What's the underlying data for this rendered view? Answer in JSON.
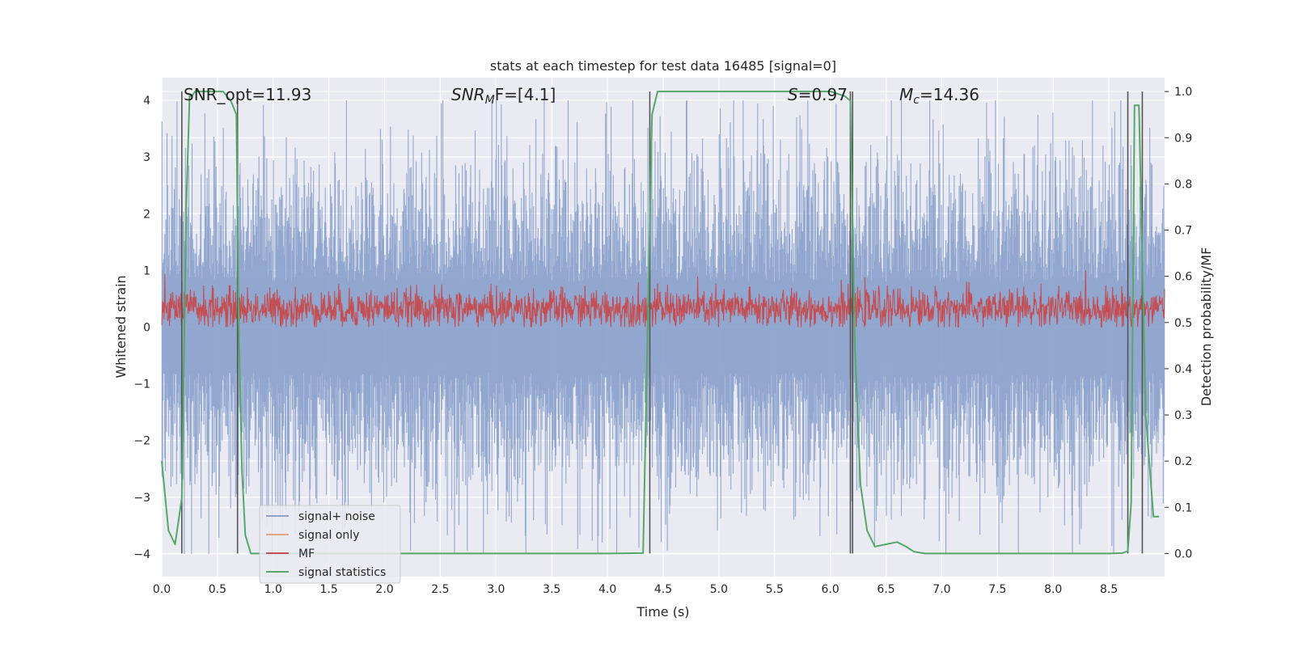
{
  "chart_data": {
    "type": "line",
    "title": "stats at each timestep for test data 16485 [signal=0]",
    "xlabel": "Time (s)",
    "ylabel_left": "Whitened strain",
    "ylabel_right": "Detection probability/MF",
    "xlim": [
      0.0,
      9.0
    ],
    "ylim_left": [
      -4.4,
      4.4
    ],
    "ylim_right": [
      -0.05,
      1.03
    ],
    "x_ticks": [
      "0.0",
      "0.5",
      "1.0",
      "1.5",
      "2.0",
      "2.5",
      "3.0",
      "3.5",
      "4.0",
      "4.5",
      "5.0",
      "5.5",
      "6.0",
      "6.5",
      "7.0",
      "7.5",
      "8.0",
      "8.5"
    ],
    "y_ticks_left": [
      "4",
      "3",
      "2",
      "1",
      "0",
      "−1",
      "−2",
      "−3",
      "−4"
    ],
    "y_ticks_right": [
      "1.0",
      "0.9",
      "0.8",
      "0.7",
      "0.6",
      "0.5",
      "0.4",
      "0.3",
      "0.2",
      "0.1",
      "0.0"
    ],
    "grid": true,
    "legend_position": "lower-left",
    "annotations": [
      {
        "text": "SNR_opt=11.93"
      },
      {
        "text": "SNR",
        "sub": "M",
        "rest": "F=[4.1]"
      },
      {
        "text": "S",
        "rest": "=0.97"
      },
      {
        "text": "M",
        "sub": "c",
        "rest": "=14.36"
      }
    ],
    "series": [
      {
        "name": "signal+ noise",
        "color": "#8da3cc",
        "axis": "left",
        "kind": "noise",
        "amplitude_range": [
          -4.0,
          4.0
        ]
      },
      {
        "name": "signal only",
        "color": "#e8a487",
        "axis": "left",
        "values": []
      },
      {
        "name": "MF",
        "color": "#c44e52",
        "axis": "left",
        "kind": "noise",
        "amplitude_range": [
          0.0,
          1.0
        ]
      },
      {
        "name": "signal statistics",
        "color": "#55a868",
        "axis": "right",
        "x": [
          0.0,
          0.06,
          0.12,
          0.18,
          0.22,
          0.25,
          0.27,
          0.3,
          0.4,
          0.55,
          0.62,
          0.67,
          0.69,
          0.72,
          0.75,
          0.8,
          0.85,
          1.0,
          2.0,
          3.0,
          4.0,
          4.32,
          4.37,
          4.4,
          4.45,
          4.5,
          5.0,
          5.5,
          6.0,
          6.13,
          6.18,
          6.22,
          6.27,
          6.33,
          6.4,
          6.5,
          6.6,
          6.68,
          6.75,
          6.85,
          7.0,
          8.0,
          8.5,
          8.62,
          8.67,
          8.7,
          8.73,
          8.77,
          8.83,
          8.9,
          8.95
        ],
        "values": [
          0.2,
          0.05,
          0.02,
          0.12,
          0.75,
          0.99,
          0.99,
          1.0,
          1.0,
          1.0,
          0.98,
          0.95,
          0.5,
          0.18,
          0.04,
          0.0,
          0.0,
          0.0,
          0.0,
          0.0,
          0.0,
          0.001,
          0.6,
          0.95,
          1.0,
          1.0,
          1.0,
          1.0,
          1.0,
          0.99,
          0.98,
          0.45,
          0.15,
          0.05,
          0.015,
          0.02,
          0.025,
          0.015,
          0.004,
          0.0,
          0.0,
          0.0,
          0.0,
          0.001,
          0.005,
          0.11,
          0.97,
          0.97,
          0.3,
          0.08,
          0.08
        ]
      }
    ],
    "vertical_markers": {
      "color": "#555555",
      "x": [
        0.18,
        0.68,
        4.38,
        6.18,
        6.2,
        8.67,
        8.8
      ],
      "y_range_right": [
        0.0,
        1.0
      ]
    }
  }
}
